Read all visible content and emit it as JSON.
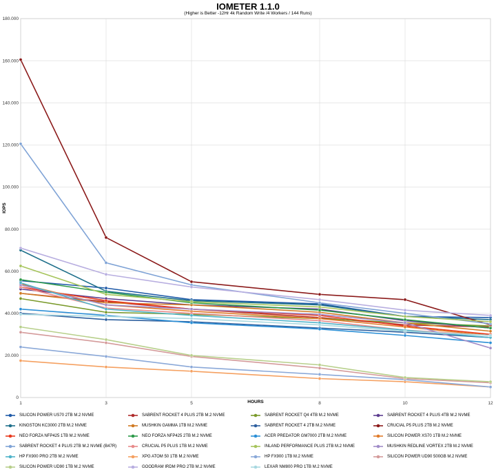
{
  "chart_data": {
    "type": "line",
    "title": "IOMETER 1.1.0",
    "subtitle": "(Higher is Better -12Hr 4k Random Write /4 Workers / 144 Runs)",
    "xlabel": "HOURS",
    "ylabel": "IOPS",
    "x": [
      "1",
      "3",
      "5",
      "8",
      "10",
      "12"
    ],
    "ylim": [
      0,
      180000
    ],
    "yticks": [
      "0",
      "20.000",
      "40.000",
      "60.000",
      "80.000",
      "100.000",
      "120.000",
      "140.000",
      "160.000",
      "180.000"
    ],
    "grid": true,
    "legend_position": "bottom",
    "series": [
      {
        "name": "SILICON POWER US70 2TB M.2 NVME",
        "color": "#1f5aa8",
        "values": [
          55500,
          52000,
          46500,
          44500,
          38500,
          38000
        ]
      },
      {
        "name": "SABRENT ROCKET 4 PLUS 2TB M.2 NVME",
        "color": "#b02c2c",
        "values": [
          49500,
          45500,
          42000,
          38000,
          34500,
          33500
        ]
      },
      {
        "name": "SABRENT ROCKET Q4 4TB M.2 NVME",
        "color": "#7a9a2b",
        "values": [
          47000,
          40500,
          39500,
          37500,
          35500,
          34000
        ]
      },
      {
        "name": "SABRENT ROCKET 4 PLUS 4TB M.2 NVME",
        "color": "#5c3d8f",
        "values": [
          51500,
          47000,
          44000,
          42000,
          36500,
          33000
        ]
      },
      {
        "name": "KINGSTON KC3000 2TB M.2 NVME",
        "color": "#1e6f8a",
        "values": [
          70000,
          50500,
          46000,
          44000,
          38500,
          37000
        ]
      },
      {
        "name": "MUSHKIN GAMMA 1TB M.2 NVME",
        "color": "#d07a22",
        "values": [
          49500,
          45000,
          44000,
          40500,
          35500,
          31500
        ]
      },
      {
        "name": "SABRENT ROCKET 4 2TB M.2 NVME",
        "color": "#2d5f9e",
        "values": [
          40000,
          37000,
          36000,
          33000,
          31000,
          28500
        ]
      },
      {
        "name": "CRUCIAL P5 PLUS 2TB M.2 NVME",
        "color": "#8b1a1a",
        "values": [
          160500,
          76000,
          55000,
          49000,
          46500,
          34500
        ]
      },
      {
        "name": "NEO FORZA NFP425 1TB M.2 NVME",
        "color": "#e8381c",
        "values": [
          52500,
          46000,
          42000,
          39000,
          34000,
          30000
        ]
      },
      {
        "name": "NEO FORZA NFP425 2TB M.2 NVME",
        "color": "#2c9a4a",
        "values": [
          56000,
          50000,
          45000,
          41500,
          37000,
          33000
        ]
      },
      {
        "name": "ACER PREDATOR GM7000 2TB M.2 NVME",
        "color": "#2b8fd6",
        "values": [
          42000,
          39000,
          35500,
          32500,
          29500,
          26000
        ]
      },
      {
        "name": "SILICON POWER XS70 1TB M.2 NVME",
        "color": "#e07b2a",
        "values": [
          54000,
          44000,
          41000,
          37500,
          33500,
          29500
        ]
      },
      {
        "name": "SABRENT ROCKET 4 PLUS 2TB M.2 NVME (B47R)",
        "color": "#7fa3d6",
        "values": [
          120500,
          64000,
          53500,
          45000,
          40000,
          35000
        ]
      },
      {
        "name": "CRUCIAL P5 PLUS 1TB M.2 NVME",
        "color": "#e88a8a",
        "values": [
          52500,
          42500,
          40000,
          36500,
          32000,
          29500
        ]
      },
      {
        "name": "INLAND PERFORMANCE PLUS 2TB M.2 NVME",
        "color": "#a6c45c",
        "values": [
          62500,
          49000,
          45500,
          43000,
          38500,
          36000
        ]
      },
      {
        "name": "MUSHKIN REDLINE VORTEX 2TB M.2 NVME",
        "color": "#a08cc8",
        "values": [
          53500,
          44000,
          42000,
          39500,
          35500,
          23500
        ]
      },
      {
        "name": "HP FX900 PRO 2TB M.2 NVME",
        "color": "#4fb3c9",
        "values": [
          54500,
          42000,
          39000,
          35500,
          32000,
          28500
        ]
      },
      {
        "name": "XPG ATOM 50 1TB M.2 NVME",
        "color": "#f5a060",
        "values": [
          17500,
          14500,
          12500,
          9000,
          7500,
          5000
        ]
      },
      {
        "name": "HP FX900 1TB M.2 NVME",
        "color": "#8aa8d8",
        "values": [
          24000,
          19500,
          14500,
          11000,
          8500,
          5000
        ]
      },
      {
        "name": "SILICON POWER UD90 500GB M.2 NVME",
        "color": "#d49a9a",
        "values": [
          31000,
          26000,
          19500,
          14000,
          9000,
          7000
        ]
      },
      {
        "name": "SILICON POWER UD90 1TB M.2 NVME",
        "color": "#b7cf8a",
        "values": [
          33500,
          27500,
          20000,
          15500,
          9500,
          7500
        ]
      },
      {
        "name": "GOODRAM IRDM PRO 2TB M.2 NVME",
        "color": "#b8aee0",
        "values": [
          71000,
          58500,
          52500,
          46500,
          41500,
          39000
        ]
      },
      {
        "name": "LEXAR NM800 PRO 1TB M.2 NVME",
        "color": "#a8d8e0",
        "values": [
          39500,
          38500,
          37500,
          34500,
          31500,
          29500
        ]
      }
    ]
  }
}
